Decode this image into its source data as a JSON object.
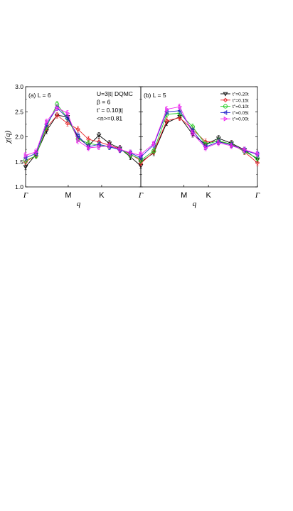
{
  "chart_data": [
    {
      "type": "line",
      "panel_label": "(a) L = 6",
      "ylabel": "χ(q)",
      "xlabel": "q",
      "categories": [
        "Γ",
        "M",
        "K",
        "Γ"
      ],
      "x_ticks": [
        "Γ",
        "M",
        "K",
        "Γ"
      ],
      "ylim": [
        1.0,
        3.0
      ],
      "y_ticks": [
        "1.0",
        "1.5",
        "2.0",
        "2.5",
        "3.0"
      ],
      "annotations": [
        "U=3|t| DQMC",
        "β = 6",
        "t' = 0.10|t|",
        "<n>=0.81"
      ],
      "x": [
        0,
        1,
        2,
        3,
        4,
        5,
        6,
        7,
        8,
        9,
        10,
        11
      ],
      "series": [
        {
          "name": "t''=0.20t",
          "color": "#000000",
          "marker": "triangle-down",
          "values": [
            1.4,
            1.65,
            2.12,
            2.43,
            2.4,
            1.98,
            1.82,
            2.03,
            1.87,
            1.77,
            1.6,
            1.42
          ]
        },
        {
          "name": "t''=0.15t",
          "color": "#e8242a",
          "marker": "diamond",
          "values": [
            1.5,
            1.63,
            2.18,
            2.43,
            2.27,
            2.15,
            1.95,
            1.9,
            1.83,
            1.76,
            1.66,
            1.52
          ]
        },
        {
          "name": "t''=0.10t",
          "color": "#22cc22",
          "marker": "circle",
          "values": [
            1.53,
            1.62,
            2.2,
            2.65,
            2.37,
            1.96,
            1.87,
            1.83,
            1.8,
            1.75,
            1.64,
            1.56
          ]
        },
        {
          "name": "t''=0.05t",
          "color": "#2222cc",
          "marker": "triangle-left",
          "values": [
            1.58,
            1.67,
            2.25,
            2.58,
            2.37,
            2.02,
            1.8,
            1.85,
            1.8,
            1.74,
            1.68,
            1.58
          ]
        },
        {
          "name": "t''=0.00t",
          "color": "#ee22ee",
          "marker": "triangle-right",
          "values": [
            1.63,
            1.7,
            2.3,
            2.58,
            2.47,
            1.92,
            1.78,
            1.8,
            1.82,
            1.75,
            1.68,
            1.63
          ]
        }
      ]
    },
    {
      "type": "line",
      "panel_label": "(b) L = 5",
      "xlabel": "q",
      "categories": [
        "Γ",
        "M",
        "K",
        "Γ"
      ],
      "x_ticks": [
        "Γ",
        "M",
        "K",
        "Γ"
      ],
      "ylim": [
        1.0,
        3.0
      ],
      "x": [
        0,
        1,
        2,
        3,
        4,
        5,
        6,
        7,
        8,
        9
      ],
      "legend_position": "top-right",
      "series": [
        {
          "name": "t''=0.20t",
          "color": "#000000",
          "marker": "triangle-down",
          "values": [
            1.5,
            1.68,
            2.28,
            2.4,
            2.05,
            1.85,
            1.97,
            1.87,
            1.74,
            1.55
          ]
        },
        {
          "name": "t''=0.15t",
          "color": "#e8242a",
          "marker": "diamond",
          "values": [
            1.47,
            1.7,
            2.32,
            2.38,
            2.15,
            1.9,
            1.9,
            1.86,
            1.7,
            1.48
          ]
        },
        {
          "name": "t''=0.10t",
          "color": "#22cc22",
          "marker": "circle",
          "values": [
            1.53,
            1.72,
            2.45,
            2.47,
            2.2,
            1.85,
            1.92,
            1.85,
            1.71,
            1.57
          ]
        },
        {
          "name": "t''=0.05t",
          "color": "#2222cc",
          "marker": "triangle-left",
          "values": [
            1.6,
            1.84,
            2.5,
            2.52,
            2.12,
            1.8,
            1.9,
            1.84,
            1.73,
            1.65
          ]
        },
        {
          "name": "t''=0.00t",
          "color": "#ee22ee",
          "marker": "triangle-right",
          "values": [
            1.65,
            1.86,
            2.55,
            2.6,
            2.07,
            1.78,
            1.88,
            1.82,
            1.74,
            1.66
          ]
        }
      ]
    }
  ]
}
